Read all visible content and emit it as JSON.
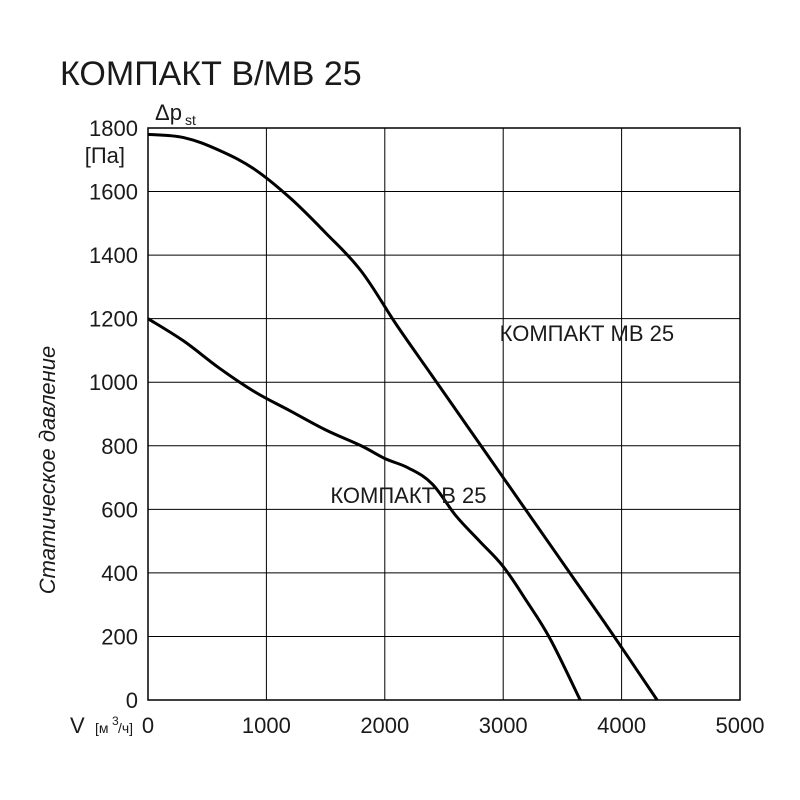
{
  "title": "КОМПАКТ В/МВ 25",
  "title_fontsize": 34,
  "background_color": "#ffffff",
  "line_color": "#000000",
  "grid_color": "#000000",
  "curve_width": 3,
  "grid_width": 1,
  "x_axis": {
    "lead": "V",
    "unit_left": "[м",
    "unit_sup": "3",
    "unit_right": "/ч]",
    "min": 0,
    "max": 5000,
    "tick_step": 1000,
    "ticks": [
      0,
      1000,
      2000,
      3000,
      4000,
      5000
    ]
  },
  "y_axis": {
    "label_vert": "Статическое давление",
    "top_symbol": "Δp",
    "top_sub": "st",
    "unit": "[Па]",
    "min": 0,
    "max": 1800,
    "tick_step": 200,
    "ticks": [
      0,
      200,
      400,
      600,
      800,
      1000,
      1200,
      1400,
      1600,
      1800
    ]
  },
  "series": [
    {
      "name": "КОМПАКТ МВ 25",
      "label_xy": [
        2970,
        1130
      ],
      "points": [
        [
          0,
          1780
        ],
        [
          300,
          1770
        ],
        [
          600,
          1730
        ],
        [
          900,
          1670
        ],
        [
          1200,
          1580
        ],
        [
          1500,
          1470
        ],
        [
          1800,
          1350
        ],
        [
          2100,
          1180
        ],
        [
          2400,
          1020
        ],
        [
          2700,
          860
        ],
        [
          3000,
          700
        ],
        [
          3300,
          540
        ],
        [
          3600,
          380
        ],
        [
          3900,
          220
        ],
        [
          4300,
          0
        ]
      ]
    },
    {
      "name": "КОМПАКТ В 25",
      "label_xy": [
        1540,
        620
      ],
      "points": [
        [
          0,
          1200
        ],
        [
          300,
          1130
        ],
        [
          600,
          1045
        ],
        [
          900,
          970
        ],
        [
          1200,
          910
        ],
        [
          1500,
          850
        ],
        [
          1800,
          800
        ],
        [
          2000,
          760
        ],
        [
          2200,
          730
        ],
        [
          2400,
          680
        ],
        [
          2600,
          580
        ],
        [
          2800,
          500
        ],
        [
          3000,
          420
        ],
        [
          3200,
          310
        ],
        [
          3400,
          190
        ],
        [
          3650,
          0
        ]
      ]
    }
  ],
  "tick_label_fontsize": 22,
  "y_vert_label_fontsize": 22,
  "series_label_fontsize": 22
}
